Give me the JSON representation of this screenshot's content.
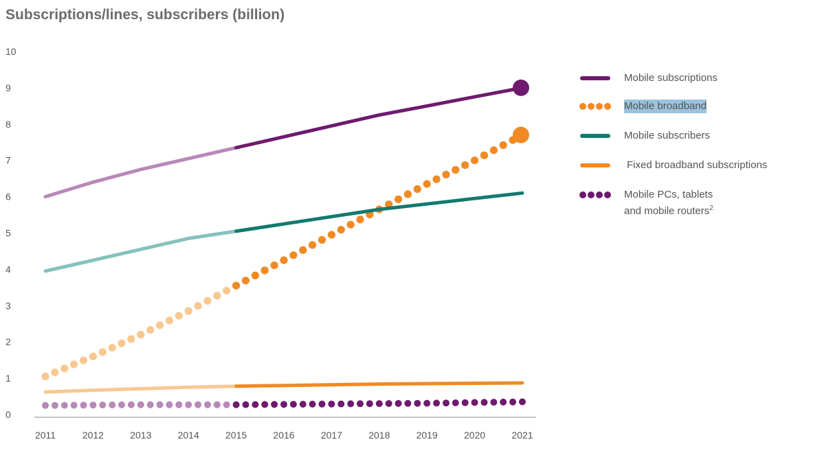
{
  "chart_data": {
    "type": "line",
    "title": "Subscriptions/lines, subscribers (billion)",
    "x": [
      2011,
      2012,
      2013,
      2014,
      2015,
      2016,
      2017,
      2018,
      2019,
      2020,
      2021
    ],
    "x_tick_labels": [
      "2011",
      "2012",
      "2013",
      "2014",
      "2015",
      "2016",
      "2017",
      "2018",
      "2019",
      "2020",
      "2021"
    ],
    "ylim": [
      0,
      10
    ],
    "y_tick_labels": [
      "0",
      "1",
      "2",
      "3",
      "4",
      "5",
      "6",
      "7",
      "8",
      "9",
      "10"
    ],
    "grid": false,
    "forecast_start": 2015,
    "legend_position": "right",
    "series": [
      {
        "name": "Mobile subscriptions",
        "style": "solid",
        "color": "#6e1a6e",
        "past_color": "#b888b8",
        "values": [
          6.0,
          6.4,
          6.75,
          7.05,
          7.35,
          7.65,
          7.95,
          8.25,
          8.5,
          8.75,
          9.0
        ],
        "end_marker": true
      },
      {
        "name": "Mobile broadband",
        "style": "dotted",
        "color": "#f08a24",
        "past_color": "#f8c890",
        "values": [
          1.05,
          1.6,
          2.2,
          2.85,
          3.55,
          4.25,
          4.95,
          5.65,
          6.35,
          7.0,
          7.7
        ],
        "end_marker": true
      },
      {
        "name": "Mobile subscribers",
        "style": "solid",
        "color": "#127a6e",
        "past_color": "#84c2bd",
        "values": [
          3.95,
          4.25,
          4.55,
          4.85,
          5.05,
          5.25,
          5.45,
          5.65,
          5.8,
          5.95,
          6.1
        ],
        "end_marker": false
      },
      {
        "name": "Fixed broadband subscriptions",
        "style": "solid",
        "color": "#f08a24",
        "past_color": "#f8c890",
        "values": [
          0.62,
          0.67,
          0.71,
          0.75,
          0.78,
          0.8,
          0.82,
          0.84,
          0.85,
          0.86,
          0.87
        ],
        "end_marker": false
      },
      {
        "name": "Mobile PCs, tablets and mobile routers",
        "footnote": "2",
        "style": "dotted",
        "color": "#6e1a6e",
        "past_color": "#b888b8",
        "values": [
          0.25,
          0.26,
          0.27,
          0.27,
          0.27,
          0.28,
          0.29,
          0.3,
          0.31,
          0.33,
          0.35
        ],
        "end_marker": false
      }
    ]
  },
  "legend": {
    "items": [
      {
        "label": "Mobile subscriptions",
        "swatch": "solid",
        "color": "#6e1a6e"
      },
      {
        "label": "Mobile broadband",
        "swatch": "dots",
        "color": "#f08a24",
        "highlighted": true
      },
      {
        "label": "Mobile subscribers",
        "swatch": "solid",
        "color": "#127a6e"
      },
      {
        "label": "Fixed broadband subscriptions",
        "swatch": "solid",
        "color": "#f08a24"
      },
      {
        "label_line1": "Mobile PCs, tablets",
        "label_line2": "and mobile routers",
        "footnote": "2",
        "swatch": "dots",
        "color": "#6e1a6e"
      }
    ]
  }
}
